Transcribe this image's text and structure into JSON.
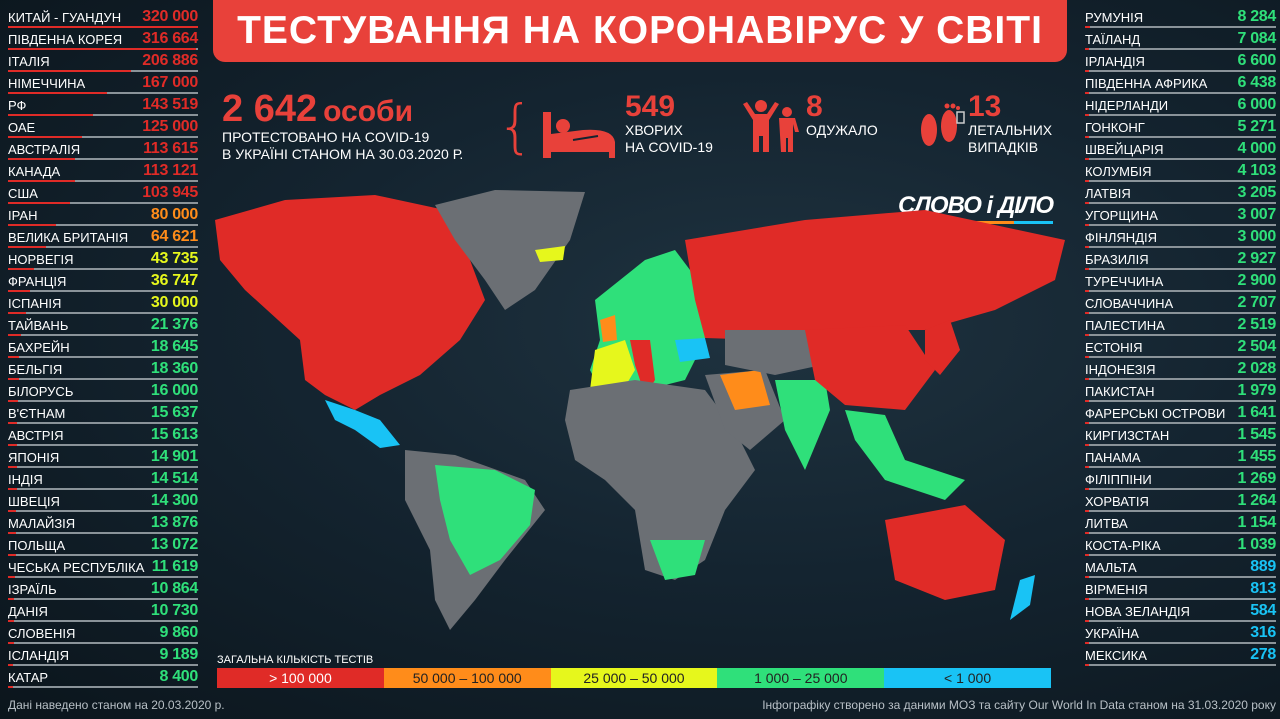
{
  "title": "ТЕСТУВАННЯ НА КОРОНАВІРУС У СВІТІ",
  "ukraine": {
    "tested_number": "2 642",
    "tested_unit": "особи",
    "tested_line1": "ПРОТЕСТОВАНО НА COVID-19",
    "tested_line2": "В УКРАЇНІ СТАНОМ НА 30.03.2020 Р.",
    "sick_number": "549",
    "sick_line1": "ХВОРИХ",
    "sick_line2": "НА COVID-19",
    "recovered_number": "8",
    "recovered_line1": "ОДУЖАЛО",
    "deaths_number": "13",
    "deaths_line1": "ЛЕТАЛЬНИХ",
    "deaths_line2": "ВИПАДКІВ"
  },
  "logo": "СЛОВО і ДІЛО",
  "colors": {
    ">100000": "#e02b27",
    "50000-100000": "#ff8c1a",
    "25000-50000": "#e6f71c",
    "1000-25000": "#2fe07a",
    "<1000": "#19c3f5",
    "no_data": "#6b6f74"
  },
  "left_list": [
    {
      "name": "КИТАЙ - ГУАНДУН",
      "value": "320 000"
    },
    {
      "name": "ПІВДЕННА КОРЕЯ",
      "value": "316 664"
    },
    {
      "name": "ІТАЛІЯ",
      "value": "206 886"
    },
    {
      "name": "НІМЕЧЧИНА",
      "value": "167 000"
    },
    {
      "name": "РФ",
      "value": "143 519"
    },
    {
      "name": "ОАЕ",
      "value": "125 000"
    },
    {
      "name": "АВСТРАЛІЯ",
      "value": "113 615"
    },
    {
      "name": "КАНАДА",
      "value": "113 121"
    },
    {
      "name": "США",
      "value": "103 945"
    },
    {
      "name": "ІРАН",
      "value": "80 000"
    },
    {
      "name": "ВЕЛИКА БРИТАНІЯ",
      "value": "64 621"
    },
    {
      "name": "НОРВЕГІЯ",
      "value": "43 735"
    },
    {
      "name": "ФРАНЦІЯ",
      "value": "36 747"
    },
    {
      "name": "ІСПАНІЯ",
      "value": "30 000"
    },
    {
      "name": "ТАЙВАНЬ",
      "value": "21 376"
    },
    {
      "name": "БАХРЕЙН",
      "value": "18 645"
    },
    {
      "name": "БЕЛЬГІЯ",
      "value": "18 360"
    },
    {
      "name": "БІЛОРУСЬ",
      "value": "16 000"
    },
    {
      "name": "В'ЄТНАМ",
      "value": "15 637"
    },
    {
      "name": "АВСТРІЯ",
      "value": "15 613"
    },
    {
      "name": "ЯПОНІЯ",
      "value": "14 901"
    },
    {
      "name": "ІНДІЯ",
      "value": "14 514"
    },
    {
      "name": "ШВЕЦІЯ",
      "value": "14 300"
    },
    {
      "name": "МАЛАЙЗІЯ",
      "value": "13 876"
    },
    {
      "name": "ПОЛЬЩА",
      "value": "13 072"
    },
    {
      "name": "ЧЕСЬКА РЕСПУБЛІКА",
      "value": "11 619"
    },
    {
      "name": "ІЗРАЇЛЬ",
      "value": "10 864"
    },
    {
      "name": "ДАНІЯ",
      "value": "10 730"
    },
    {
      "name": "СЛОВЕНІЯ",
      "value": "9 860"
    },
    {
      "name": "ІСЛАНДІЯ",
      "value": "9 189"
    },
    {
      "name": "КАТАР",
      "value": "8 400"
    }
  ],
  "right_list": [
    {
      "name": "РУМУНІЯ",
      "value": "8 284"
    },
    {
      "name": "ТАЇЛАНД",
      "value": "7 084"
    },
    {
      "name": "ІРЛАНДІЯ",
      "value": "6 600"
    },
    {
      "name": "ПІВДЕННА АФРИКА",
      "value": "6 438"
    },
    {
      "name": "НІДЕРЛАНДИ",
      "value": "6 000"
    },
    {
      "name": "ГОНКОНГ",
      "value": "5 271"
    },
    {
      "name": "ШВЕЙЦАРІЯ",
      "value": "4 000"
    },
    {
      "name": "КОЛУМБІЯ",
      "value": "4 103"
    },
    {
      "name": "ЛАТВІЯ",
      "value": "3 205"
    },
    {
      "name": "УГОРЩИНА",
      "value": "3 007"
    },
    {
      "name": "ФІНЛЯНДІЯ",
      "value": "3 000"
    },
    {
      "name": "БРАЗИЛІЯ",
      "value": "2 927"
    },
    {
      "name": "ТУРЕЧЧИНА",
      "value": "2 900"
    },
    {
      "name": "СЛОВАЧЧИНА",
      "value": "2 707"
    },
    {
      "name": "ПАЛЕСТИНА",
      "value": "2 519"
    },
    {
      "name": "ЕСТОНІЯ",
      "value": "2 504"
    },
    {
      "name": "ІНДОНЕЗІЯ",
      "value": "2 028"
    },
    {
      "name": "ПАКИСТАН",
      "value": "1 979"
    },
    {
      "name": "ФАРЕРСЬКІ ОСТРОВИ",
      "value": "1 641"
    },
    {
      "name": "КИРГИЗСТАН",
      "value": "1 545"
    },
    {
      "name": "ПАНАМА",
      "value": "1 455"
    },
    {
      "name": "ФІЛІППІНИ",
      "value": "1 269"
    },
    {
      "name": "ХОРВАТІЯ",
      "value": "1 264"
    },
    {
      "name": "ЛИТВА",
      "value": "1 154"
    },
    {
      "name": "КОСТА-РІКА",
      "value": "1 039"
    },
    {
      "name": "МАЛЬТА",
      "value": "889"
    },
    {
      "name": "ВІРМЕНІЯ",
      "value": "813"
    },
    {
      "name": "НОВА ЗЕЛАНДІЯ",
      "value": "584"
    },
    {
      "name": "УКРАЇНА",
      "value": "316"
    },
    {
      "name": "МЕКСИКА",
      "value": "278"
    }
  ],
  "legend": {
    "title": "ЗАГАЛЬНА КІЛЬКІСТЬ ТЕСТІВ",
    "items": [
      "> 100 000",
      "50 000 – 100 000",
      "25 000 – 50 000",
      "1 000 – 25 000",
      "< 1 000"
    ]
  },
  "footer": {
    "left": "Дані наведено станом на 20.03.2020 р.",
    "right": "Інфографіку створено за даними МОЗ та сайту Our World In Data станом на 31.03.2020 року"
  }
}
